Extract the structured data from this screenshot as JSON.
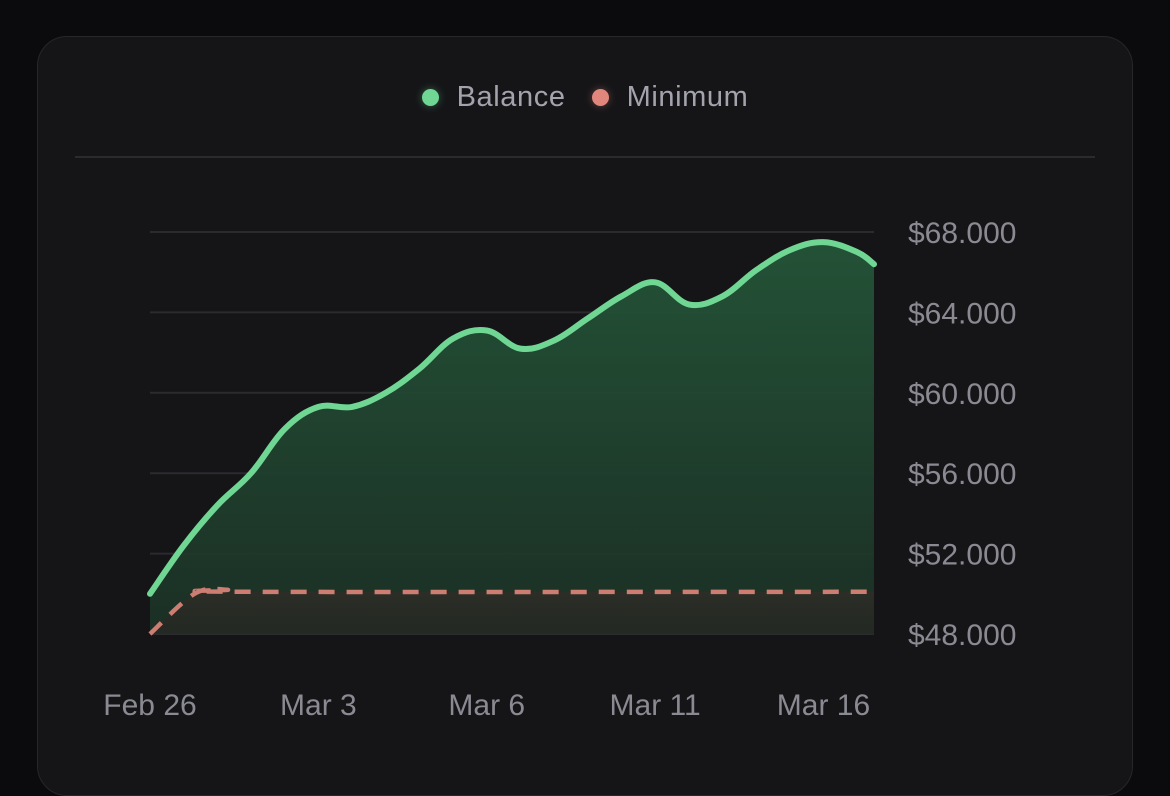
{
  "legend": {
    "balance_label": "Balance",
    "minimum_label": "Minimum"
  },
  "colors": {
    "balance": "#6fd693",
    "minimum": "#e0867c",
    "grid": "#2a2a2f",
    "background": "#151518"
  },
  "chart_data": {
    "type": "area",
    "title": "",
    "xlabel": "",
    "ylabel": "",
    "ylim": [
      48000,
      68000
    ],
    "y_ticks": [
      48000,
      52000,
      56000,
      60000,
      64000,
      68000
    ],
    "y_tick_labels": [
      "$48.000",
      "$52.000",
      "$56.000",
      "$60.000",
      "$64.000",
      "$68.000"
    ],
    "x_range": [
      0,
      21.5
    ],
    "x_ticks": [
      0,
      5,
      10,
      15,
      20
    ],
    "x_tick_labels": [
      "Feb 26",
      "Mar 3",
      "Mar 6",
      "Mar 11",
      "Mar 16"
    ],
    "grid": true,
    "y_axis_position": "right",
    "legend_position": "top-center",
    "series": [
      {
        "name": "Balance",
        "style": "solid-area",
        "x": [
          0,
          1,
          2,
          3,
          4,
          5,
          6,
          7,
          8,
          9,
          10,
          11,
          12,
          13,
          14,
          15,
          16,
          17,
          18,
          19,
          20,
          21,
          21.5
        ],
        "values": [
          50000,
          52400,
          54400,
          56000,
          58200,
          59300,
          59300,
          60000,
          61200,
          62700,
          63100,
          62200,
          62600,
          63700,
          64800,
          65500,
          64400,
          64800,
          66100,
          67100,
          67500,
          67000,
          66400
        ]
      },
      {
        "name": "Minimum",
        "style": "dashed",
        "x": [
          0,
          1,
          1.6,
          2.3,
          3,
          21.5
        ],
        "values": [
          48000,
          49600,
          50200,
          50200,
          50100,
          50100
        ]
      }
    ]
  }
}
